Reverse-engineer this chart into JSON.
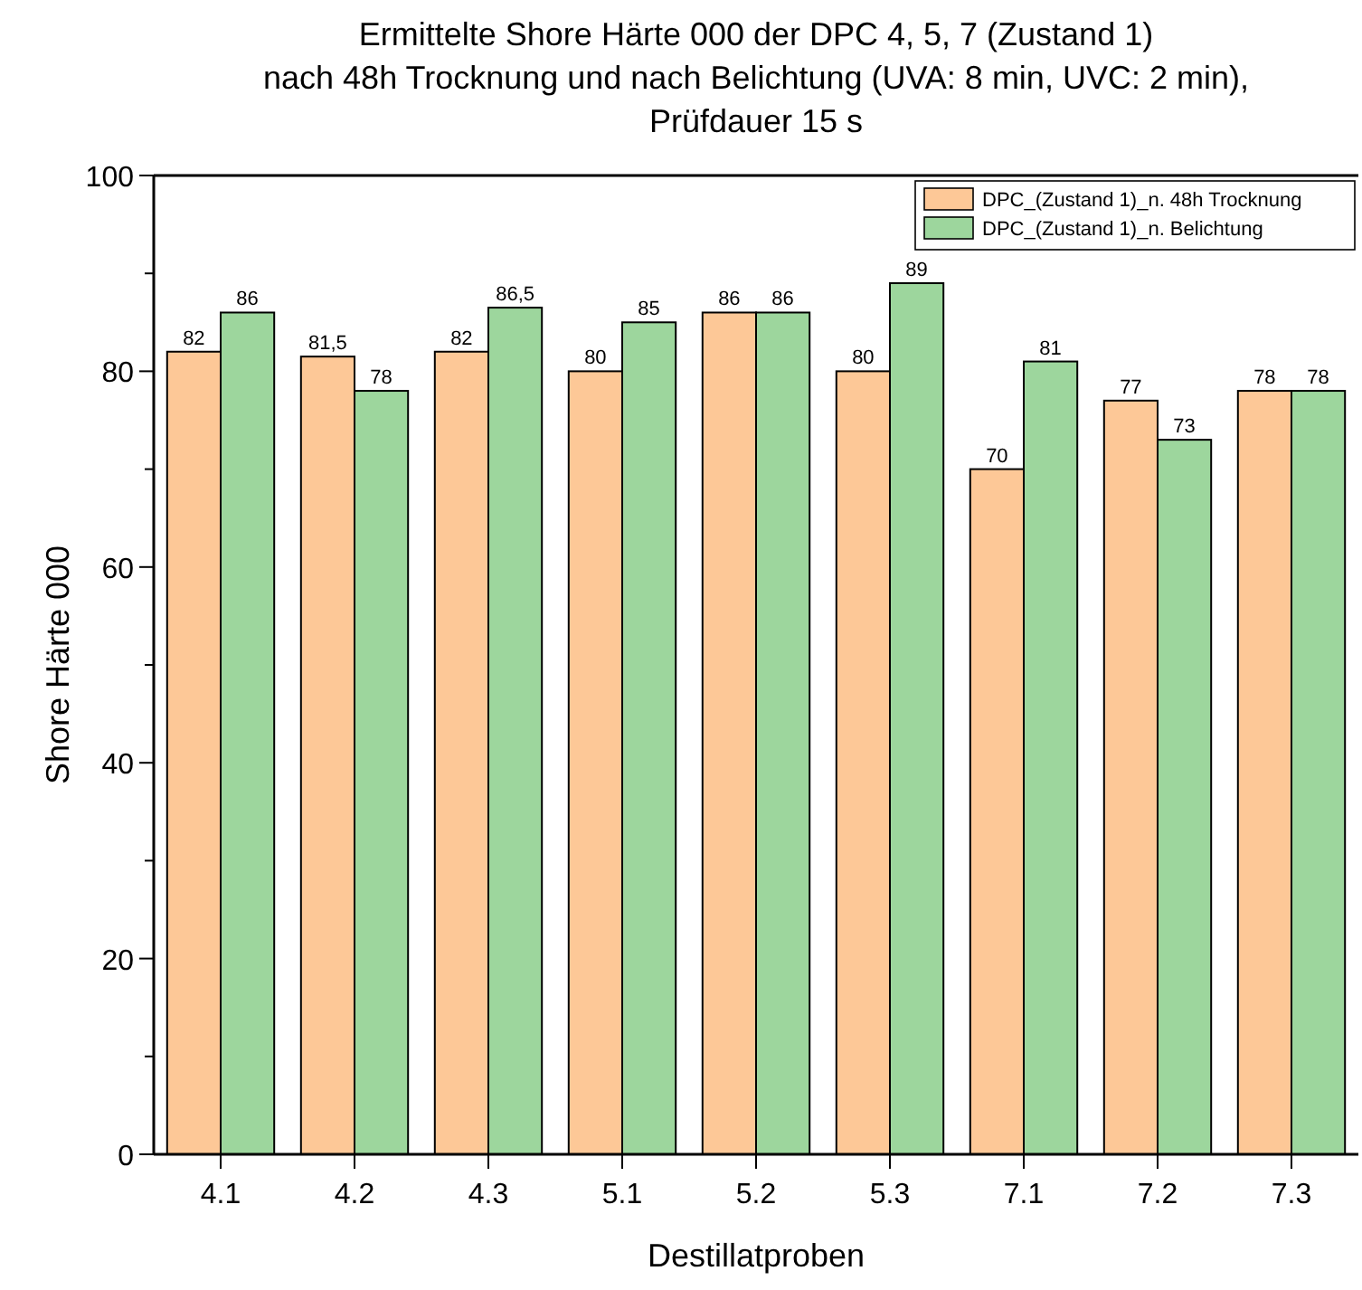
{
  "chart_data": {
    "type": "bar",
    "title": "Ermittelte Shore Härte 000 der DPC 4, 5, 7 (Zustand 1)\nnach 48h Trocknung und nach Belichtung (UVA: 8 min, UVC: 2 min),\nPrüfdauer 15 s",
    "xlabel": "Destillatproben",
    "ylabel": "Shore Härte 000",
    "categories": [
      "4.1",
      "4.2",
      "4.3",
      "5.1",
      "5.2",
      "5.3",
      "7.1",
      "7.2",
      "7.3"
    ],
    "series": [
      {
        "name": "DPC_(Zustand 1)_n. 48h Trocknung",
        "color": "#fdc897",
        "values": [
          82,
          81.5,
          82,
          80,
          86,
          80,
          70,
          77,
          78
        ],
        "value_labels": [
          "82",
          "81,5",
          "82",
          "80",
          "86",
          "80",
          "70",
          "77",
          "78"
        ]
      },
      {
        "name": "DPC_(Zustand 1)_n. Belichtung",
        "color": "#9dd69d",
        "values": [
          86,
          78,
          86.5,
          85,
          86,
          89,
          81,
          73,
          78
        ],
        "value_labels": [
          "86",
          "78",
          "86,5",
          "85",
          "86",
          "89",
          "81",
          "73",
          "78"
        ]
      }
    ],
    "ylim": [
      0,
      100
    ],
    "yticks": [
      0,
      {
        "value": 10,
        "label": null
      },
      20,
      {
        "value": 30,
        "label": null
      },
      40,
      {
        "value": 50,
        "label": null
      },
      60,
      {
        "value": 70,
        "label": null
      },
      80,
      {
        "value": 90,
        "label": null
      },
      100
    ],
    "grid": false,
    "legend": "top right"
  }
}
